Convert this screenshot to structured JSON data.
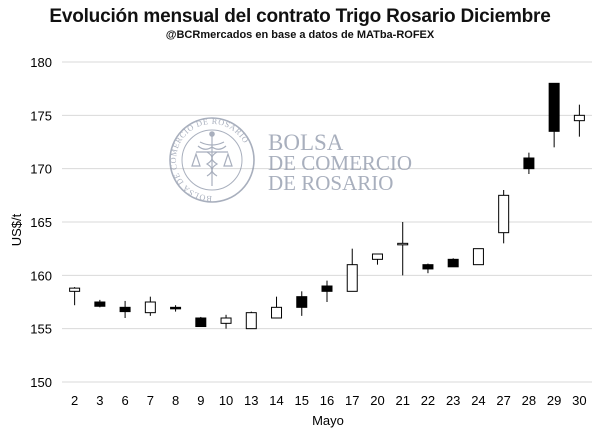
{
  "chart_data": {
    "type": "candlestick",
    "title": "Evolución mensual del contrato Trigo Rosario Diciembre",
    "subtitle": "@BCRmercados en base a datos de MATba-ROFEX",
    "xlabel": "Mayo",
    "ylabel": "US$/t",
    "ylim": [
      150,
      180
    ],
    "yticks": [
      150,
      155,
      160,
      165,
      170,
      175,
      180
    ],
    "grid": true,
    "categories": [
      "2",
      "3",
      "6",
      "7",
      "8",
      "9",
      "10",
      "13",
      "14",
      "15",
      "16",
      "17",
      "20",
      "21",
      "22",
      "23",
      "24",
      "27",
      "28",
      "29",
      "30"
    ],
    "series": [
      {
        "name": "open",
        "values": [
          158.5,
          157.5,
          157.0,
          156.5,
          157.0,
          156.0,
          155.5,
          155.0,
          156.0,
          158.0,
          159.0,
          158.5,
          161.5,
          163.0,
          161.0,
          161.5,
          161.0,
          164.0,
          171.0,
          178.0,
          174.5
        ]
      },
      {
        "name": "high",
        "values": [
          158.9,
          157.7,
          157.6,
          158.0,
          157.2,
          156.1,
          156.3,
          156.6,
          158.0,
          158.5,
          159.5,
          162.5,
          162.0,
          165.0,
          161.1,
          161.6,
          162.5,
          168.0,
          171.5,
          178.0,
          176.0
        ]
      },
      {
        "name": "low",
        "values": [
          157.2,
          157.0,
          156.0,
          156.2,
          156.6,
          155.2,
          155.0,
          155.0,
          156.0,
          156.2,
          157.5,
          158.5,
          161.0,
          160.0,
          160.2,
          160.8,
          161.0,
          163.0,
          169.5,
          172.0,
          173.0
        ]
      },
      {
        "name": "close",
        "values": [
          158.8,
          157.1,
          156.6,
          157.5,
          156.9,
          155.2,
          156.0,
          156.5,
          157.0,
          157.0,
          158.5,
          161.0,
          162.0,
          163.0,
          160.6,
          160.8,
          162.5,
          167.5,
          170.0,
          173.5,
          175.0
        ]
      }
    ]
  },
  "watermark": {
    "name_line1": "BOLSA",
    "name_line2": "DE COMERCIO",
    "name_line3": "DE ROSARIO",
    "seal_text": "BOLSA DE COMERCIO DE ROSARIO"
  },
  "colors": {
    "up_fill": "#ffffff",
    "down_fill": "#000000",
    "stroke": "#000000",
    "grid": "#d9d9d9",
    "watermark": "#8c95a8"
  }
}
